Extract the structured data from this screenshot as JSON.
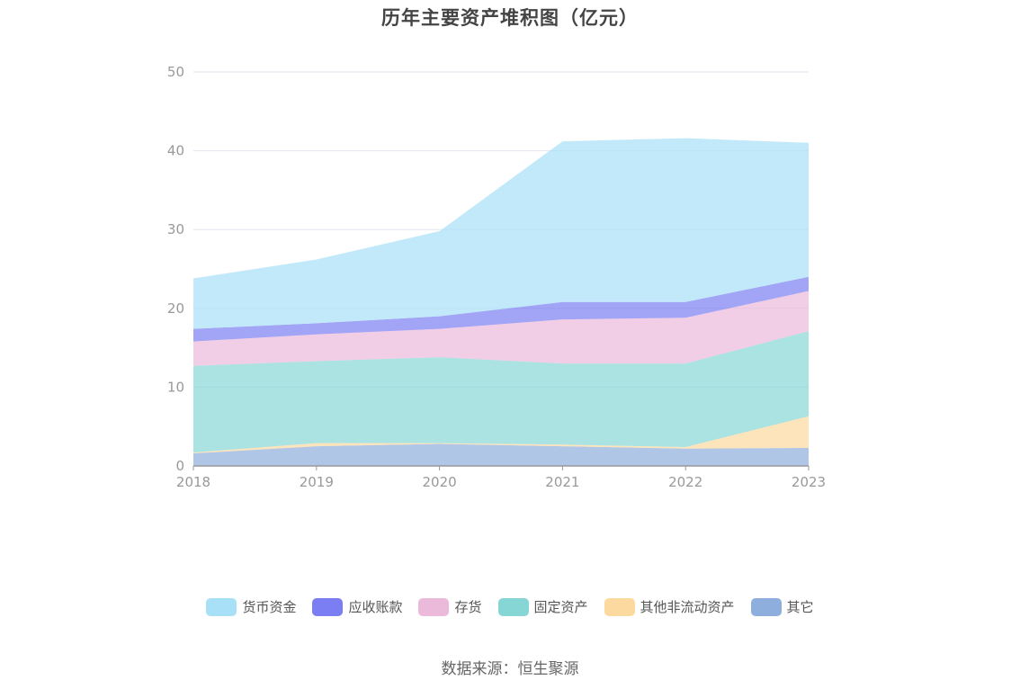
{
  "chart_data": {
    "type": "area",
    "stacked": true,
    "title": "历年主要资产堆积图（亿元）",
    "categories": [
      "2018",
      "2019",
      "2020",
      "2021",
      "2022",
      "2023"
    ],
    "ylim": [
      0,
      50
    ],
    "yticks": [
      0,
      10,
      20,
      30,
      40,
      50
    ],
    "grid": true,
    "legend_position": "bottom",
    "series": [
      {
        "name": "其它",
        "color": "#8eaedd",
        "values": [
          1.6,
          2.5,
          2.8,
          2.5,
          2.2,
          2.3
        ]
      },
      {
        "name": "其他非流动资产",
        "color": "#fcd99e",
        "values": [
          0.1,
          0.4,
          0.1,
          0.2,
          0.2,
          4.0
        ]
      },
      {
        "name": "固定资产",
        "color": "#87d6d6",
        "values": [
          11.0,
          10.4,
          10.9,
          10.3,
          10.6,
          10.8
        ]
      },
      {
        "name": "存货",
        "color": "#ebb9da",
        "values": [
          3.1,
          3.4,
          3.6,
          5.6,
          5.8,
          5.1
        ]
      },
      {
        "name": "应收账款",
        "color": "#7b7df2",
        "values": [
          1.6,
          1.4,
          1.6,
          2.2,
          2.0,
          1.8
        ]
      },
      {
        "name": "货币资金",
        "color": "#a8e0f8",
        "values": [
          6.4,
          8.1,
          10.8,
          20.4,
          20.8,
          17.0
        ]
      }
    ],
    "legend_order": [
      "货币资金",
      "应收账款",
      "存货",
      "固定资产",
      "其他非流动资产",
      "其它"
    ]
  },
  "source_text": "数据来源：恒生聚源"
}
